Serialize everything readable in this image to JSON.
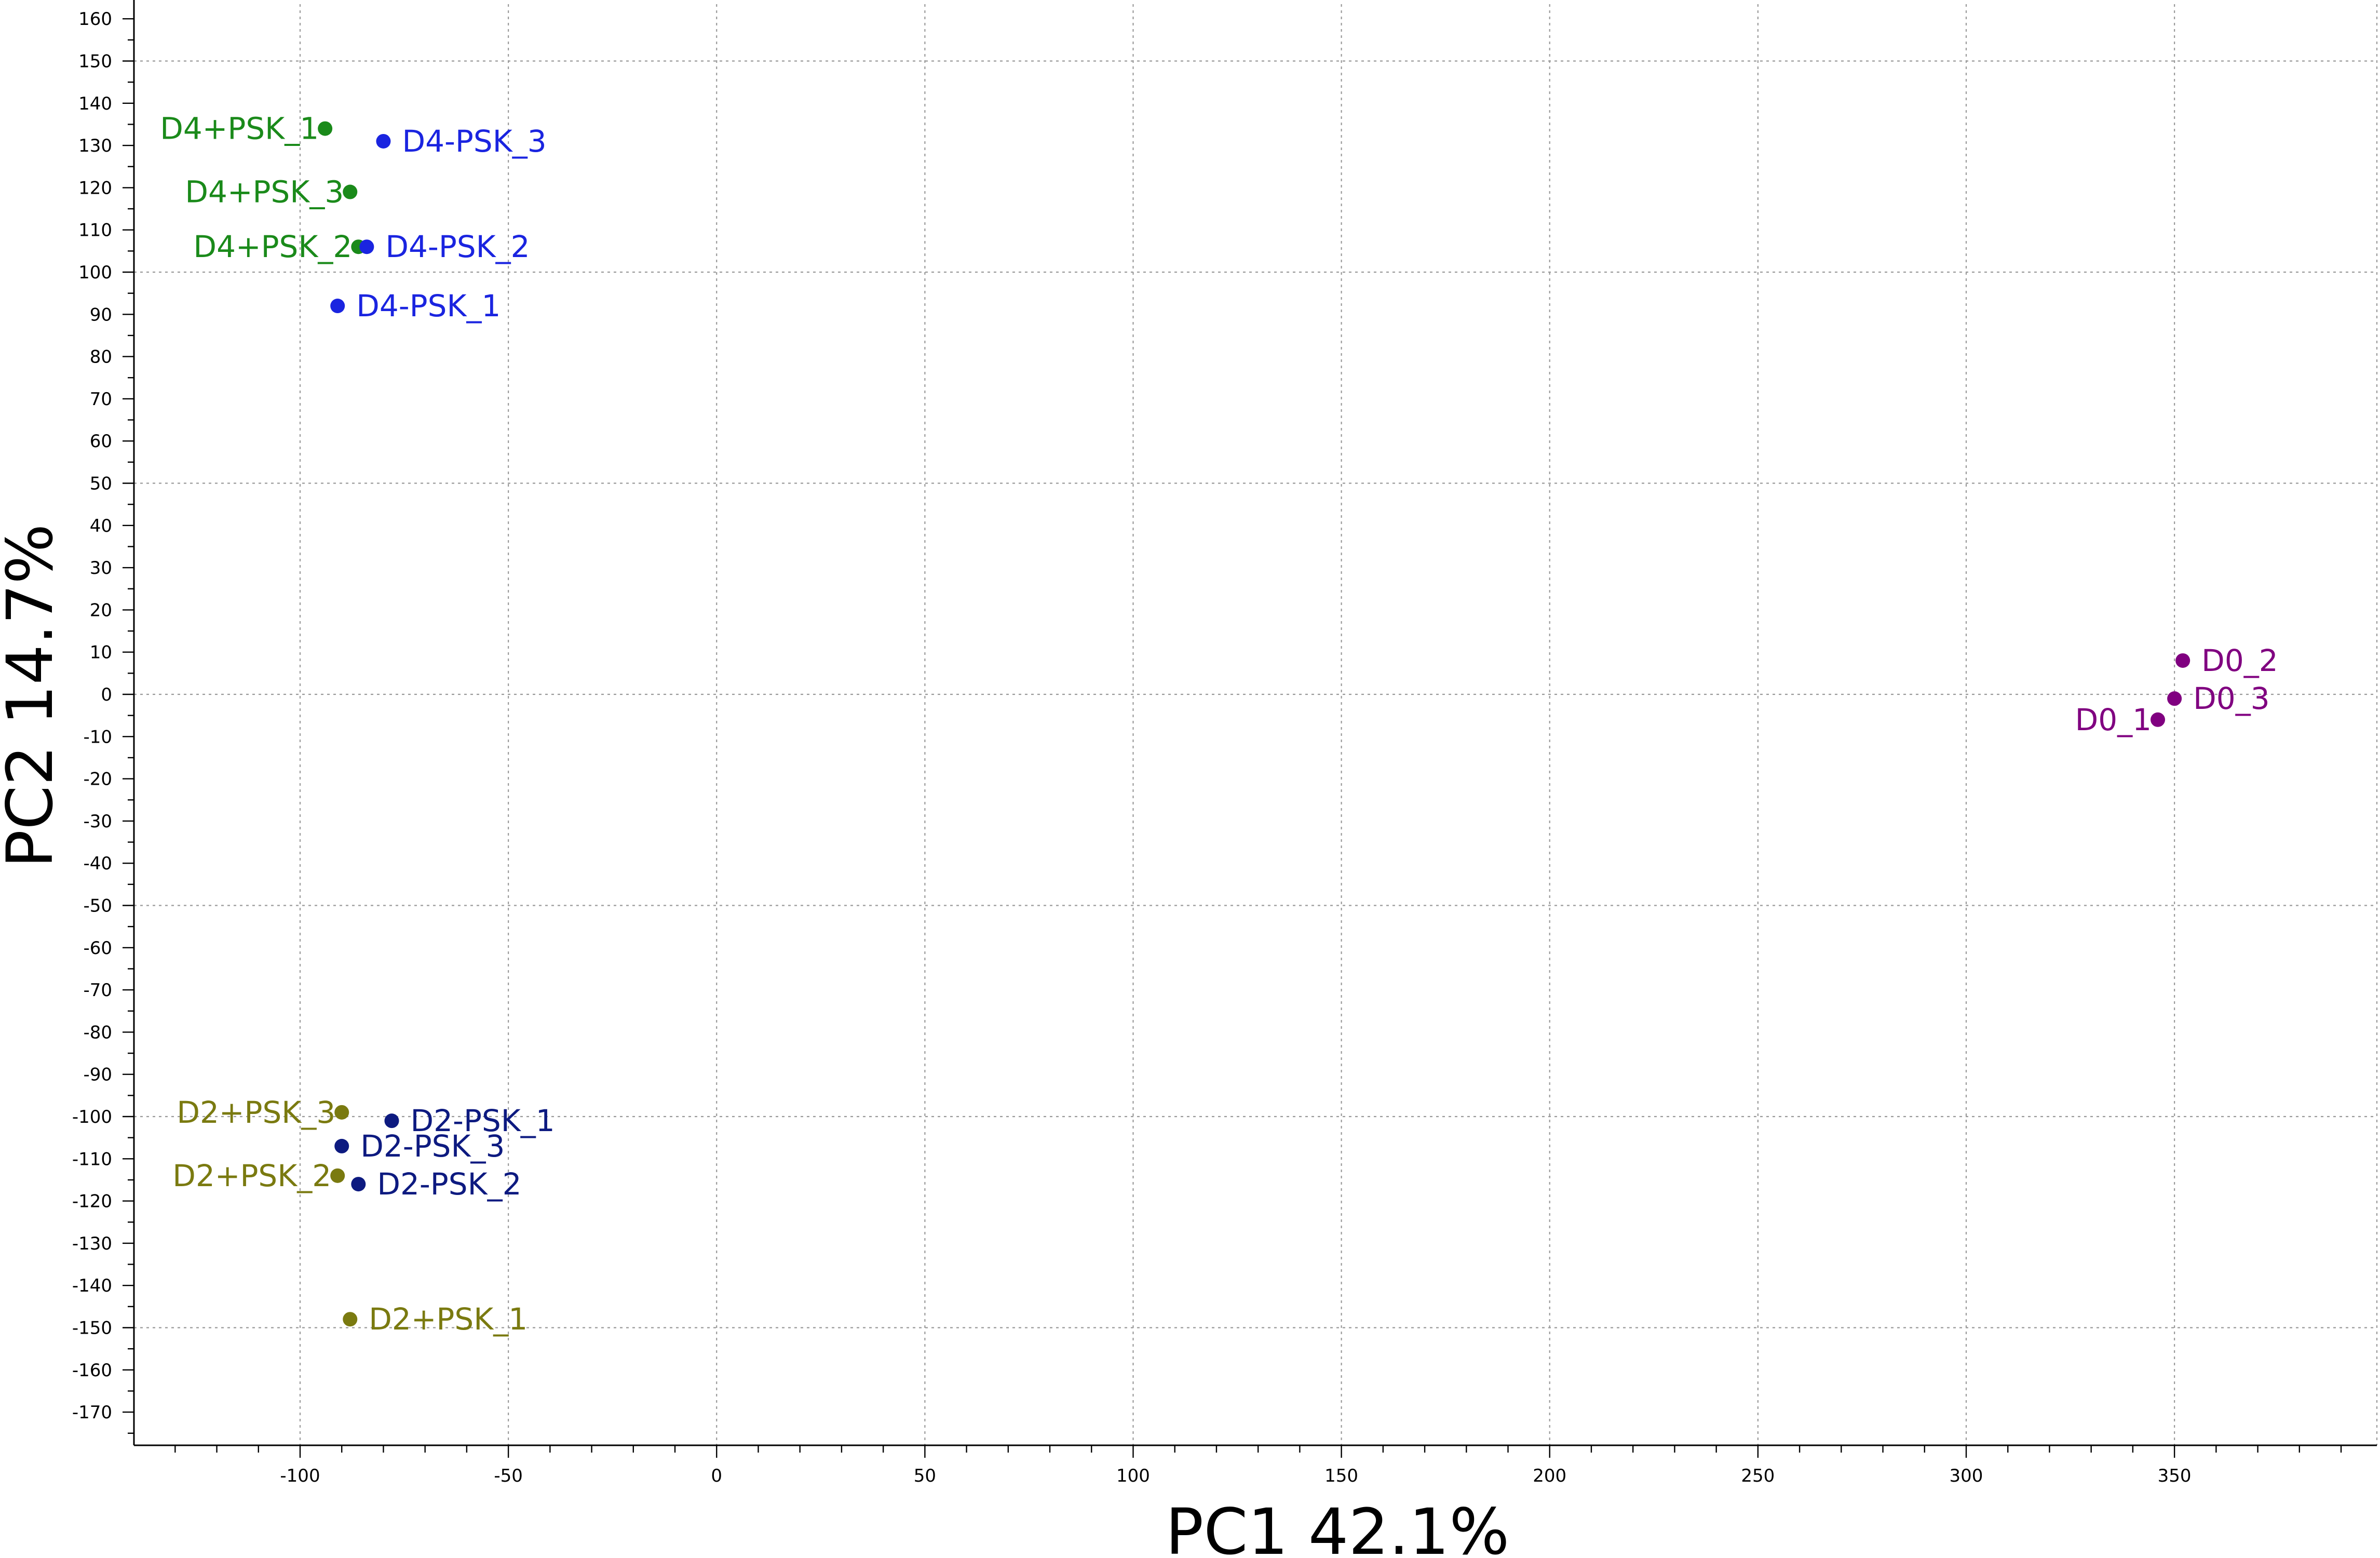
{
  "chart_data": {
    "type": "scatter",
    "xlabel": "PC1 42.1%",
    "ylabel": "PC2 14.7%",
    "xlim": [
      -140,
      400
    ],
    "ylim": [
      -180,
      165
    ],
    "x_ticks": [
      -100,
      -50,
      0,
      50,
      100,
      150,
      200,
      250,
      300,
      350
    ],
    "y_ticks": [
      160,
      150,
      140,
      130,
      120,
      110,
      100,
      90,
      80,
      70,
      60,
      50,
      40,
      30,
      20,
      10,
      0,
      -10,
      -20,
      -30,
      -40,
      -50,
      -60,
      -70,
      -80,
      -90,
      -100,
      -110,
      -120,
      -130,
      -140,
      -150,
      -160,
      -170
    ],
    "grid": true,
    "legend": "none",
    "colors": {
      "D4+PSK": "#1a8a1a",
      "D4-PSK": "#1a24e0",
      "D2+PSK": "#7a7a10",
      "D2-PSK": "#0d1a80",
      "D0": "#800080"
    },
    "points": [
      {
        "label": "D4+PSK_1",
        "group": "D4+PSK",
        "x": -94,
        "y": 134,
        "anchor": "end"
      },
      {
        "label": "D4+PSK_3",
        "group": "D4+PSK",
        "x": -88,
        "y": 119,
        "anchor": "end"
      },
      {
        "label": "D4+PSK_2",
        "group": "D4+PSK",
        "x": -86,
        "y": 106,
        "anchor": "end"
      },
      {
        "label": "D4-PSK_3",
        "group": "D4-PSK",
        "x": -80,
        "y": 131,
        "anchor": "start"
      },
      {
        "label": "D4-PSK_2",
        "group": "D4-PSK",
        "x": -84,
        "y": 106,
        "anchor": "start"
      },
      {
        "label": "D4-PSK_1",
        "group": "D4-PSK",
        "x": -91,
        "y": 92,
        "anchor": "start"
      },
      {
        "label": "D0_2",
        "group": "D0",
        "x": 352,
        "y": 8,
        "anchor": "start"
      },
      {
        "label": "D0_3",
        "group": "D0",
        "x": 350,
        "y": -1,
        "anchor": "start"
      },
      {
        "label": "D0_1",
        "group": "D0",
        "x": 346,
        "y": -6,
        "anchor": "end"
      },
      {
        "label": "D2+PSK_3",
        "group": "D2+PSK",
        "x": -90,
        "y": -99,
        "anchor": "end"
      },
      {
        "label": "D2+PSK_2",
        "group": "D2+PSK",
        "x": -91,
        "y": -114,
        "anchor": "end"
      },
      {
        "label": "D2+PSK_1",
        "group": "D2+PSK",
        "x": -88,
        "y": -148,
        "anchor": "start"
      },
      {
        "label": "D2-PSK_1",
        "group": "D2-PSK",
        "x": -78,
        "y": -101,
        "anchor": "start"
      },
      {
        "label": "D2-PSK_3",
        "group": "D2-PSK",
        "x": -90,
        "y": -107,
        "anchor": "start"
      },
      {
        "label": "D2-PSK_2",
        "group": "D2-PSK",
        "x": -86,
        "y": -116,
        "anchor": "start"
      }
    ]
  }
}
